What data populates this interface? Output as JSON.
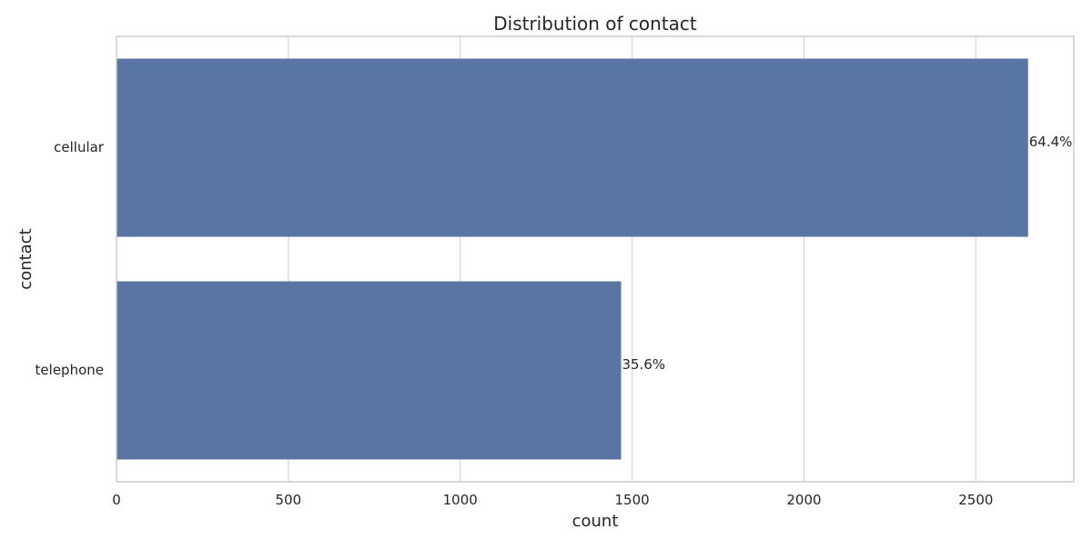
{
  "chart_data": {
    "type": "bar",
    "orientation": "horizontal",
    "title": "Distribution of contact",
    "xlabel": "count",
    "ylabel": "contact",
    "categories": [
      "cellular",
      "telephone"
    ],
    "values": [
      2652,
      1468
    ],
    "data_labels": [
      "64.4%",
      "35.6%"
    ],
    "xlim": [
      0,
      2785
    ],
    "xticks": [
      0,
      500,
      1000,
      1500,
      2000,
      2500
    ],
    "xtick_labels": [
      "0",
      "500",
      "1000",
      "1500",
      "2000",
      "2500"
    ],
    "grid": true,
    "legend": "none",
    "colors": {
      "bar": "#5975a4",
      "grid": "#d3d3d3",
      "spine": "#cccccc",
      "text": "#262626",
      "background": "#ffffff"
    }
  }
}
